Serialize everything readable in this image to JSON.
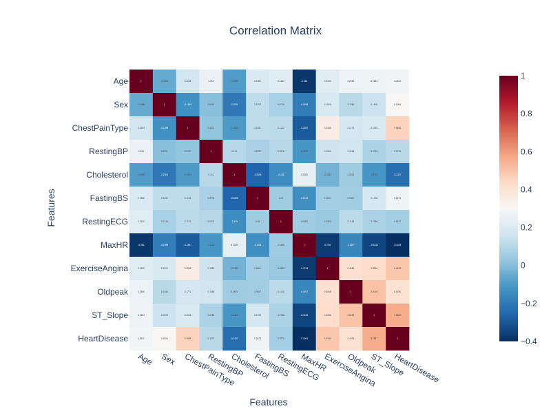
{
  "chart_data": {
    "type": "heatmap",
    "title": "Correlation Matrix",
    "xlabel": "Features",
    "ylabel": "Features",
    "features": [
      "Age",
      "Sex",
      "ChestPainType",
      "RestingBP",
      "Cholesterol",
      "FastingBS",
      "RestingECG",
      "MaxHR",
      "ExerciseAngina",
      "Oldpeak",
      "ST_Slope",
      "HeartDisease"
    ],
    "colorscale": [
      "#053061",
      "#2166ac",
      "#4393c3",
      "#92c5de",
      "#d1e5f0",
      "#f7f7f7",
      "#fddbc7",
      "#f4a582",
      "#d6604d",
      "#b2182b",
      "#67001f"
    ],
    "zlim": [
      -0.4,
      1
    ],
    "colorbar_ticks": [
      "1",
      "0.8",
      "0.6",
      "0.4",
      "0.2",
      "0",
      "−0.2",
      "−0.4"
    ],
    "colorbar_tick_values": [
      1,
      0.8,
      0.6,
      0.4,
      0.2,
      0,
      -0.2,
      -0.4
    ],
    "matrix": [
      [
        1,
        -0.0555,
        0.1654,
        0.254,
        -0.0952,
        0.1986,
        0.2132,
        -0.382,
        0.2159,
        0.2589,
        0.2684,
        0.2821
      ],
      [
        -0.0555,
        1,
        -0.1269,
        0.0051,
        -0.2001,
        0.1202,
        0.0719,
        -0.1899,
        0.1909,
        0.1056,
        0.1508,
        0.3054
      ],
      [
        0.1654,
        -0.1269,
        1,
        0.0207,
        -0.1001,
        0.1161,
        0.1122,
        -0.2897,
        0.3548,
        0.1771,
        0.1925,
        0.4598
      ],
      [
        0.254,
        0.0051,
        0.0207,
        1,
        0.101,
        0.0702,
        0.0976,
        -0.1122,
        0.1553,
        0.1648,
        0.0759,
        0.1075
      ],
      [
        -0.0952,
        -0.2001,
        -0.1001,
        0.101,
        1,
        -0.2606,
        -0.138,
        0.2358,
        -0.0342,
        0.0501,
        -0.1112,
        -0.2327
      ],
      [
        0.1986,
        0.1202,
        0.1161,
        0.0702,
        -0.2606,
        1,
        0.05,
        -0.1314,
        0.0601,
        0.0527,
        0.1758,
        0.2673
      ],
      [
        0.2132,
        0.0719,
        0.1122,
        0.0976,
        -0.138,
        0.05,
        1,
        0.0485,
        0.0363,
        0.1143,
        0.0785,
        0.0572
      ],
      [
        -0.382,
        -0.1899,
        -0.2897,
        -0.1122,
        0.2358,
        -0.1314,
        0.0485,
        1,
        -0.3704,
        -0.1607,
        -0.3434,
        -0.4004
      ],
      [
        0.2159,
        0.1909,
        0.3548,
        0.1553,
        -0.0342,
        0.0601,
        0.0363,
        -0.3704,
        1,
        0.4088,
        0.4286,
        0.4943
      ],
      [
        0.2589,
        0.1056,
        0.1771,
        0.1648,
        0.0501,
        0.0527,
        0.1143,
        -0.1607,
        0.4088,
        1,
        0.5019,
        0.4039
      ],
      [
        0.2684,
        0.1508,
        0.1925,
        0.0759,
        -0.1112,
        0.1758,
        0.0785,
        -0.3434,
        0.4286,
        0.5019,
        1,
        0.5587
      ],
      [
        0.2821,
        0.3054,
        0.4598,
        0.1075,
        -0.2327,
        0.2673,
        0.0572,
        -0.4004,
        0.4943,
        0.4039,
        0.5587,
        1
      ]
    ]
  }
}
